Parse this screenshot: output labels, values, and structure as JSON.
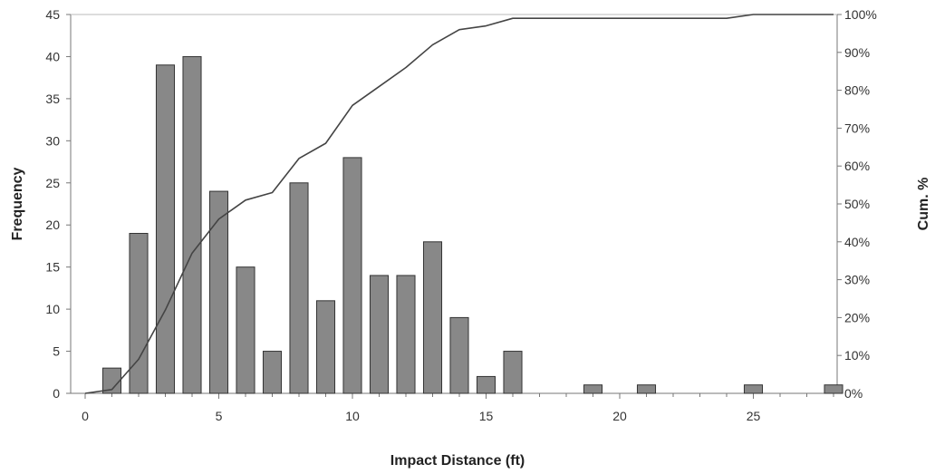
{
  "chart_data": {
    "type": "bar",
    "title": "",
    "xlabel": "Impact Distance (ft)",
    "ylabel": "Frequency",
    "y2label": "Cum. %",
    "xlim": [
      0,
      28
    ],
    "ylim": [
      0,
      45
    ],
    "y2lim": [
      0,
      100
    ],
    "x_ticks": [
      0,
      5,
      10,
      15,
      20,
      25
    ],
    "y_ticks": [
      0,
      5,
      10,
      15,
      20,
      25,
      30,
      35,
      40,
      45
    ],
    "y2_ticks": [
      "0%",
      "10%",
      "20%",
      "30%",
      "40%",
      "50%",
      "60%",
      "70%",
      "80%",
      "90%",
      "100%"
    ],
    "grid": false,
    "legend": "none",
    "bar_color": "#888888",
    "line_color": "#444444",
    "series": [
      {
        "kind": "bar",
        "axis": "left",
        "x": [
          1,
          2,
          3,
          4,
          5,
          6,
          7,
          8,
          9,
          10,
          11,
          12,
          13,
          14,
          15,
          16,
          19,
          21,
          25,
          28
        ],
        "values": [
          3,
          19,
          39,
          40,
          24,
          15,
          5,
          25,
          11,
          28,
          14,
          14,
          18,
          9,
          2,
          5,
          1,
          1,
          1,
          1
        ]
      },
      {
        "kind": "line",
        "axis": "right",
        "x": [
          0,
          1,
          2,
          3,
          4,
          5,
          6,
          7,
          8,
          9,
          10,
          11,
          12,
          13,
          14,
          15,
          16,
          17,
          18,
          19,
          20,
          21,
          22,
          23,
          24,
          25,
          26,
          27,
          28
        ],
        "values": [
          0,
          1,
          9,
          22,
          37,
          46,
          51,
          53,
          62,
          66,
          76,
          81,
          86,
          92,
          96,
          97,
          99,
          99,
          99,
          99,
          99,
          99,
          99,
          99,
          99,
          100,
          100,
          100,
          100
        ]
      }
    ]
  }
}
